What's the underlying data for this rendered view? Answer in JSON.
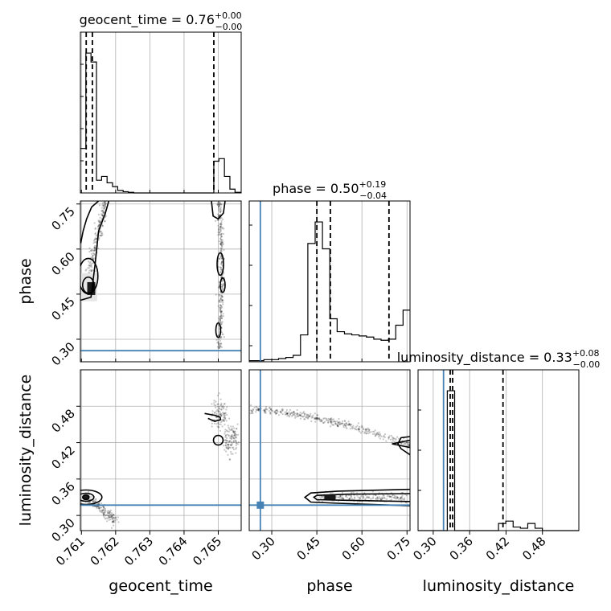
{
  "chart_data": {
    "type": "corner",
    "parameters": [
      "geocent_time",
      "phase",
      "luminosity_distance"
    ],
    "titles": [
      {
        "name": "geocent_time",
        "median": "0.76",
        "plus": "+0.00",
        "minus": "−0.00"
      },
      {
        "name": "phase",
        "median": "0.50",
        "plus": "+0.19",
        "minus": "−0.04"
      },
      {
        "name": "luminosity_distance",
        "median": "0.33",
        "plus": "+0.08",
        "minus": "−0.00"
      }
    ],
    "ranges": {
      "geocent_time": [
        0.76097,
        0.76567
      ],
      "phase": [
        0.225,
        0.76
      ],
      "luminosity_distance": [
        0.275,
        0.54
      ]
    },
    "ticks": {
      "geocent_time": [
        "0.761",
        "0.762",
        "0.763",
        "0.764",
        "0.765"
      ],
      "phase": [
        "0.30",
        "0.45",
        "0.60",
        "0.75"
      ],
      "luminosity_distance": [
        "0.30",
        "0.36",
        "0.42",
        "0.48"
      ]
    },
    "truths": {
      "phase": 0.262,
      "luminosity_distance": 0.317
    },
    "truth_color": "#4682b4",
    "quantiles": {
      "geocent_time": [
        0.76114,
        0.76132,
        0.76487
      ],
      "phase": [
        0.45,
        0.495,
        0.69
      ],
      "luminosity_distance": [
        0.328,
        0.332,
        0.415
      ]
    },
    "hist_geocent_time": {
      "edges": [
        0.76097,
        0.76113,
        0.76128,
        0.76144,
        0.76159,
        0.76175,
        0.76191,
        0.76206,
        0.76222,
        0.76237,
        0.76253,
        0.76268,
        0.76284,
        0.763,
        0.76315,
        0.76331,
        0.76346,
        0.76362,
        0.76378,
        0.76393,
        0.76409,
        0.76424,
        0.7644,
        0.76456,
        0.76471,
        0.76487,
        0.76502,
        0.76518,
        0.76534,
        0.76549,
        0.76567
      ],
      "counts": [
        35,
        110,
        103,
        10,
        13,
        8,
        5,
        2,
        1,
        0.5,
        0,
        0,
        0,
        0,
        0,
        0,
        0,
        0,
        0,
        0,
        0,
        0,
        0,
        0,
        0,
        25,
        27,
        13,
        3,
        0.5
      ]
    },
    "hist_phase": {
      "edges": [
        0.225,
        0.2494,
        0.2737,
        0.2981,
        0.3225,
        0.3469,
        0.3712,
        0.3956,
        0.42,
        0.4444,
        0.4687,
        0.4931,
        0.5175,
        0.5419,
        0.5662,
        0.5906,
        0.615,
        0.6394,
        0.6637,
        0.6881,
        0.7125,
        0.7369,
        0.76
      ],
      "counts": [
        1,
        1,
        2,
        2,
        3,
        4,
        6,
        25,
        110,
        130,
        105,
        40,
        28,
        26,
        25,
        24,
        23,
        21,
        20,
        21,
        34,
        48
      ]
    },
    "hist_luminosity_distance": {
      "edges": [
        0.275,
        0.2871,
        0.2991,
        0.3112,
        0.3232,
        0.3353,
        0.3473,
        0.3594,
        0.3714,
        0.3835,
        0.3955,
        0.4076,
        0.4196,
        0.4317,
        0.4437,
        0.4558,
        0.4678,
        0.4799,
        0.4919,
        0.504,
        0.516,
        0.5281,
        0.54
      ],
      "counts": [
        0,
        0,
        0,
        0,
        118,
        0,
        0,
        0,
        0,
        0,
        0,
        6,
        8,
        3,
        2,
        6,
        2,
        0,
        0,
        0,
        0,
        0
      ]
    }
  }
}
